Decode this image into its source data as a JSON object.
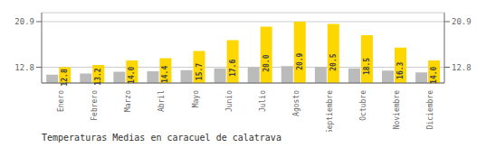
{
  "chart_data": {
    "type": "bar",
    "title": "Temperaturas Medias en caracuel de calatrava",
    "categories": [
      "Enero",
      "Febrero",
      "Marzo",
      "Abril",
      "Mayo",
      "Junio",
      "Julio",
      "Agosto",
      "Septiembre",
      "Octubre",
      "Noviembre",
      "Diciembre"
    ],
    "series": [
      {
        "color": "#BBBBBB",
        "values": [
          11.5,
          11.7,
          12.0,
          12.1,
          12.3,
          12.6,
          12.8,
          13.0,
          12.9,
          12.6,
          12.2,
          11.9
        ]
      },
      {
        "color": "#FFD700",
        "values": [
          12.8,
          13.2,
          14.0,
          14.4,
          15.7,
          17.6,
          20.0,
          20.9,
          20.5,
          18.5,
          16.3,
          14.0
        ],
        "data_labels": true,
        "value_labels": [
          "12.8",
          "13.2",
          "14.0",
          "14.4",
          "15.7",
          "17.6",
          "20.0",
          "20.9",
          "20.5",
          "18.5",
          "16.3",
          "14.0"
        ]
      }
    ],
    "ylim": [
      10.0,
      22.5
    ],
    "yticks": [
      12.8,
      20.9
    ],
    "y2lim": [
      10.0,
      22.5
    ],
    "y2ticks": [
      12.8,
      20.9
    ],
    "grid": true
  }
}
